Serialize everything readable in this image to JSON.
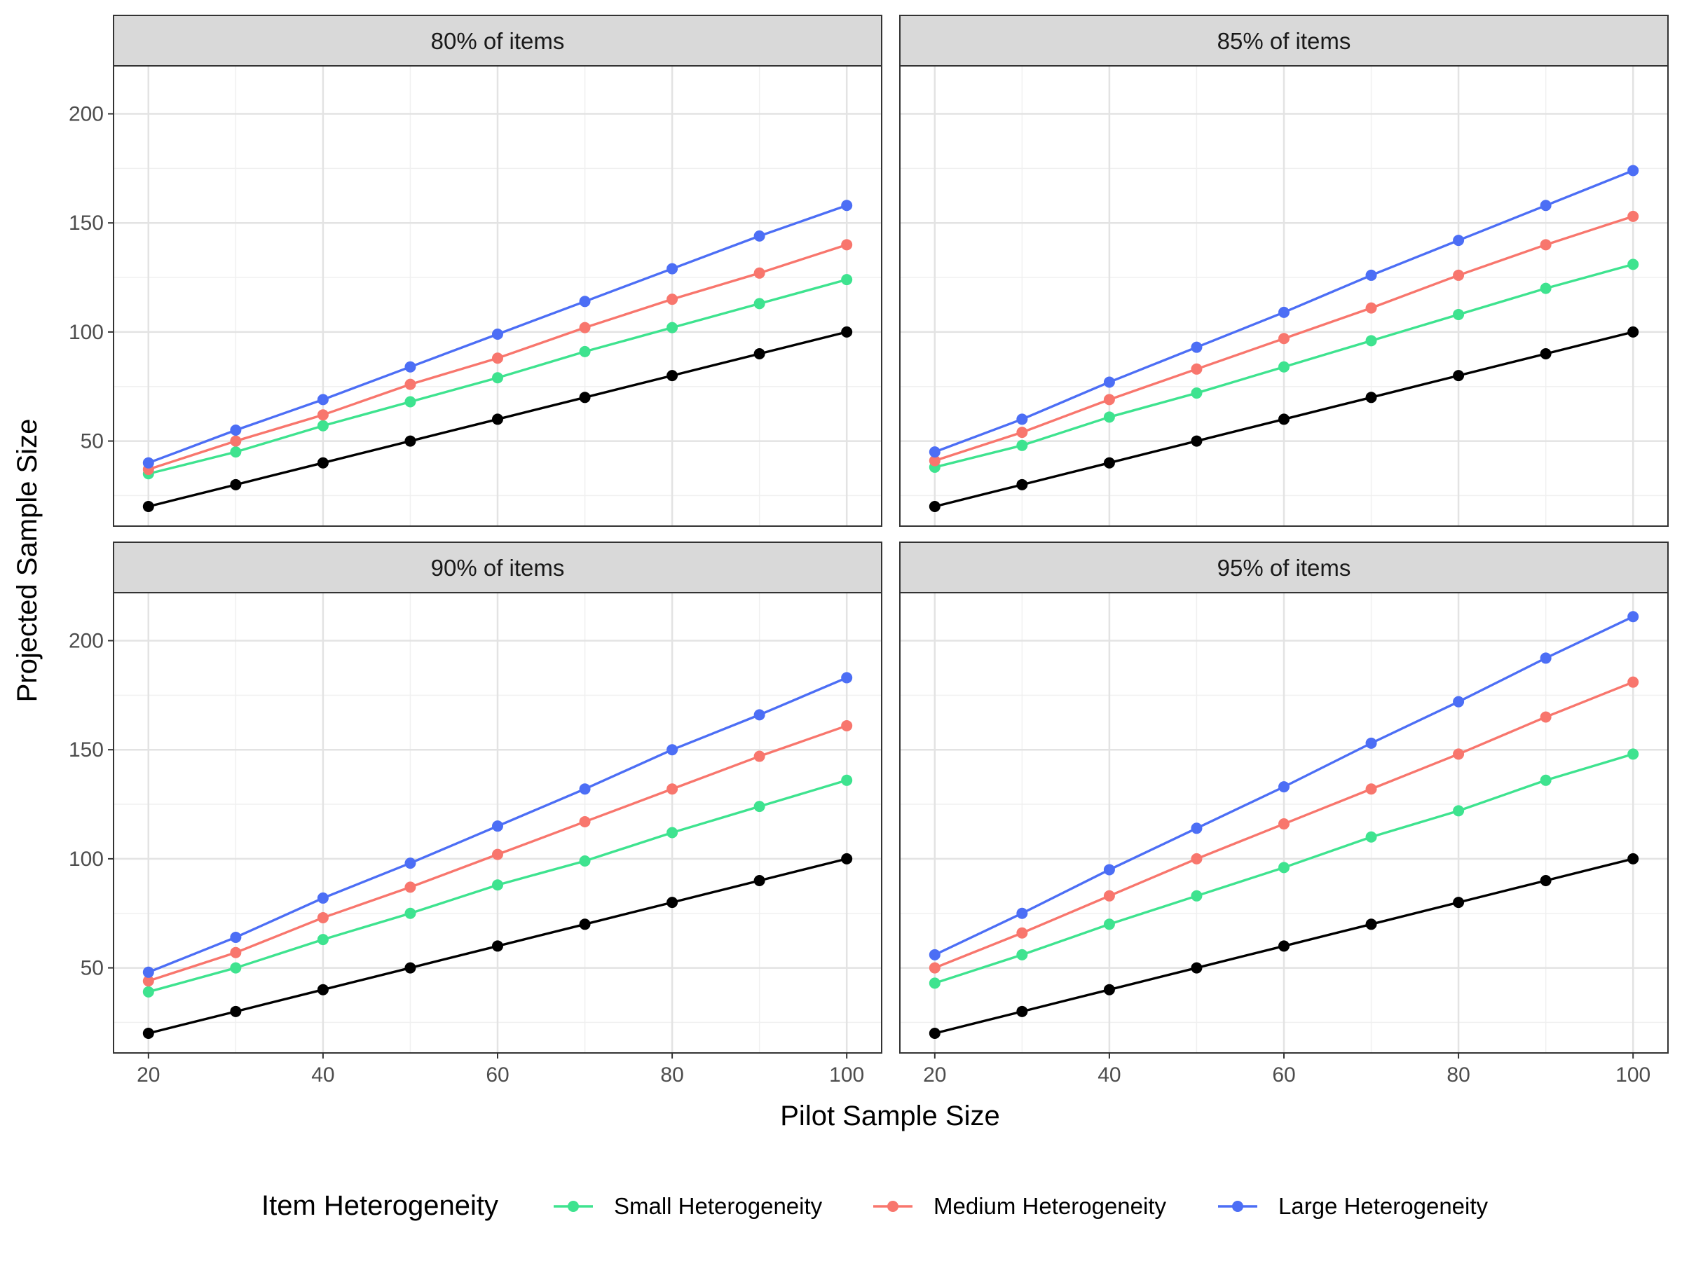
{
  "chart_data": {
    "type": "line",
    "xlabel": "Pilot Sample Size",
    "ylabel": "Projected Sample Size",
    "xlim": [
      16,
      104
    ],
    "ylim": [
      11,
      222
    ],
    "x_ticks": [
      20,
      40,
      60,
      80,
      100
    ],
    "y_ticks": [
      50,
      100,
      150,
      200
    ],
    "x": [
      20,
      30,
      40,
      50,
      60,
      70,
      80,
      90,
      100
    ],
    "grid": true,
    "legend": {
      "title": "Item Heterogeneity",
      "position": "bottom",
      "items": [
        {
          "label": "Small Heterogeneity",
          "color": "#3ee38f"
        },
        {
          "label": "Medium Heterogeneity",
          "color": "#f8766d"
        },
        {
          "label": "Large Heterogeneity",
          "color": "#4c6ef5"
        }
      ]
    },
    "reference_color": "#000000",
    "panels": [
      {
        "label": "80% of items",
        "series": [
          {
            "color": "#000000",
            "values": [
              20,
              30,
              40,
              50,
              60,
              70,
              80,
              90,
              100
            ]
          },
          {
            "name": "Small Heterogeneity",
            "color": "#3ee38f",
            "values": [
              35,
              45,
              57,
              68,
              79,
              91,
              102,
              113,
              124
            ]
          },
          {
            "name": "Medium Heterogeneity",
            "color": "#f8766d",
            "values": [
              37,
              50,
              62,
              76,
              88,
              102,
              115,
              127,
              140
            ]
          },
          {
            "name": "Large Heterogeneity",
            "color": "#4c6ef5",
            "values": [
              40,
              55,
              69,
              84,
              99,
              114,
              129,
              144,
              158
            ]
          }
        ]
      },
      {
        "label": "85% of items",
        "series": [
          {
            "color": "#000000",
            "values": [
              20,
              30,
              40,
              50,
              60,
              70,
              80,
              90,
              100
            ]
          },
          {
            "name": "Small Heterogeneity",
            "color": "#3ee38f",
            "values": [
              38,
              48,
              61,
              72,
              84,
              96,
              108,
              120,
              131
            ]
          },
          {
            "name": "Medium Heterogeneity",
            "color": "#f8766d",
            "values": [
              41,
              54,
              69,
              83,
              97,
              111,
              126,
              140,
              153
            ]
          },
          {
            "name": "Large Heterogeneity",
            "color": "#4c6ef5",
            "values": [
              45,
              60,
              77,
              93,
              109,
              126,
              142,
              158,
              174
            ]
          }
        ]
      },
      {
        "label": "90% of items",
        "series": [
          {
            "color": "#000000",
            "values": [
              20,
              30,
              40,
              50,
              60,
              70,
              80,
              90,
              100
            ]
          },
          {
            "name": "Small Heterogeneity",
            "color": "#3ee38f",
            "values": [
              39,
              50,
              63,
              75,
              88,
              99,
              112,
              124,
              136
            ]
          },
          {
            "name": "Medium Heterogeneity",
            "color": "#f8766d",
            "values": [
              44,
              57,
              73,
              87,
              102,
              117,
              132,
              147,
              161
            ]
          },
          {
            "name": "Large Heterogeneity",
            "color": "#4c6ef5",
            "values": [
              48,
              64,
              82,
              98,
              115,
              132,
              150,
              166,
              183
            ]
          }
        ]
      },
      {
        "label": "95% of items",
        "series": [
          {
            "color": "#000000",
            "values": [
              20,
              30,
              40,
              50,
              60,
              70,
              80,
              90,
              100
            ]
          },
          {
            "name": "Small Heterogeneity",
            "color": "#3ee38f",
            "values": [
              43,
              56,
              70,
              83,
              96,
              110,
              122,
              136,
              148
            ]
          },
          {
            "name": "Medium Heterogeneity",
            "color": "#f8766d",
            "values": [
              50,
              66,
              83,
              100,
              116,
              132,
              148,
              165,
              181
            ]
          },
          {
            "name": "Large Heterogeneity",
            "color": "#4c6ef5",
            "values": [
              56,
              75,
              95,
              114,
              133,
              153,
              172,
              192,
              211
            ]
          }
        ]
      }
    ]
  }
}
